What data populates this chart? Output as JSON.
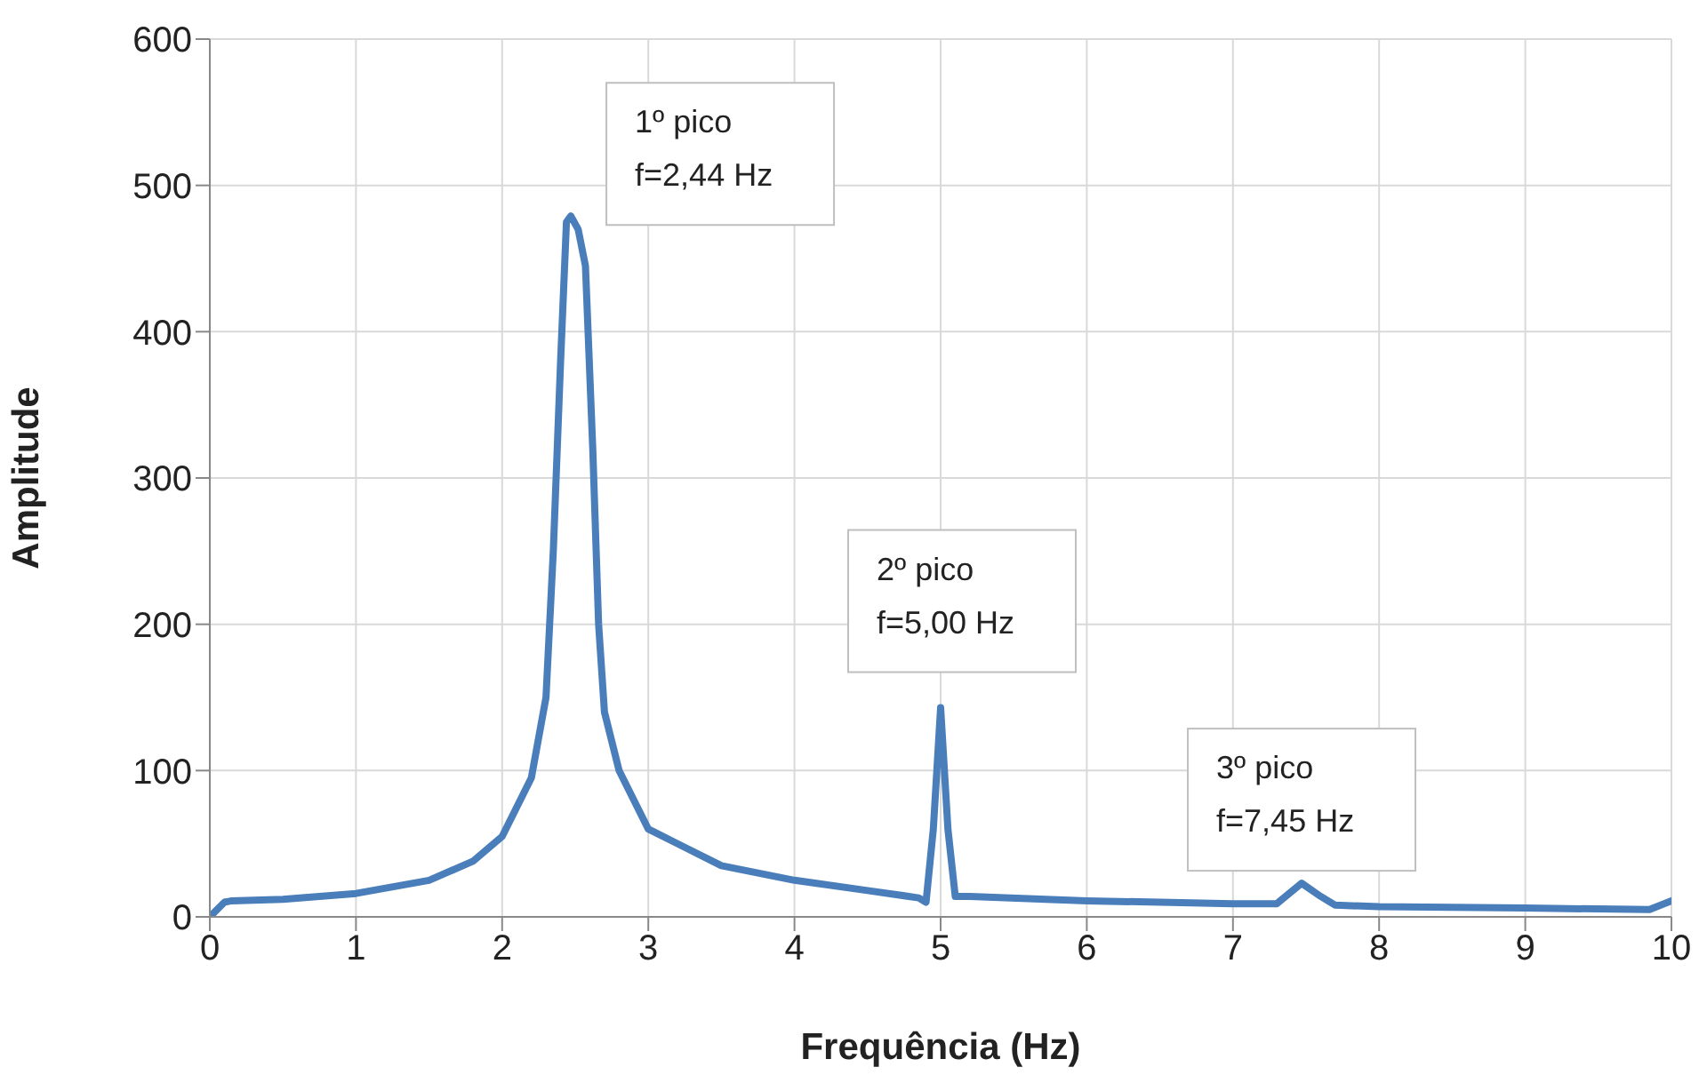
{
  "chart_data": {
    "type": "line",
    "xlabel": "Frequência (Hz)",
    "ylabel": "Amplitude",
    "x": [
      0,
      0.1,
      0.15,
      0.5,
      1,
      1.5,
      1.8,
      2.0,
      2.2,
      2.3,
      2.35,
      2.4,
      2.44,
      2.47,
      2.52,
      2.57,
      2.62,
      2.66,
      2.7,
      2.8,
      3.0,
      3.5,
      4,
      4.5,
      4.85,
      4.9,
      4.95,
      5.0,
      5.05,
      5.1,
      5.2,
      6,
      7,
      7.3,
      7.47,
      7.6,
      7.7,
      8,
      9,
      9.85,
      10
    ],
    "series": [
      {
        "color": "#4a7ebb",
        "values": [
          0,
          10,
          11,
          12,
          16,
          25,
          38,
          55,
          95,
          150,
          250,
          380,
          475,
          479,
          470,
          445,
          320,
          200,
          140,
          100,
          60,
          35,
          25,
          18,
          13,
          10,
          60,
          143,
          60,
          14,
          14,
          11,
          9,
          9,
          23,
          14,
          8,
          7,
          6,
          5,
          11
        ]
      }
    ],
    "xlim": [
      0,
      10
    ],
    "xticks": [
      0,
      1,
      2,
      3,
      4,
      5,
      6,
      7,
      8,
      9,
      10
    ],
    "ylim": [
      0,
      600
    ],
    "yticks": [
      0,
      100,
      200,
      300,
      400,
      500,
      600
    ],
    "grid": true,
    "marker": "none",
    "line_style": "solid",
    "annotations": [
      {
        "text": "1º pico\nf=2,44 Hz",
        "x": 2.47,
        "y": 479
      },
      {
        "text": "2º pico\nf=5,00 Hz",
        "x": 5.0,
        "y": 143
      },
      {
        "text": "3º pico\nf=7,45 Hz",
        "x": 7.47,
        "y": 23
      }
    ]
  }
}
